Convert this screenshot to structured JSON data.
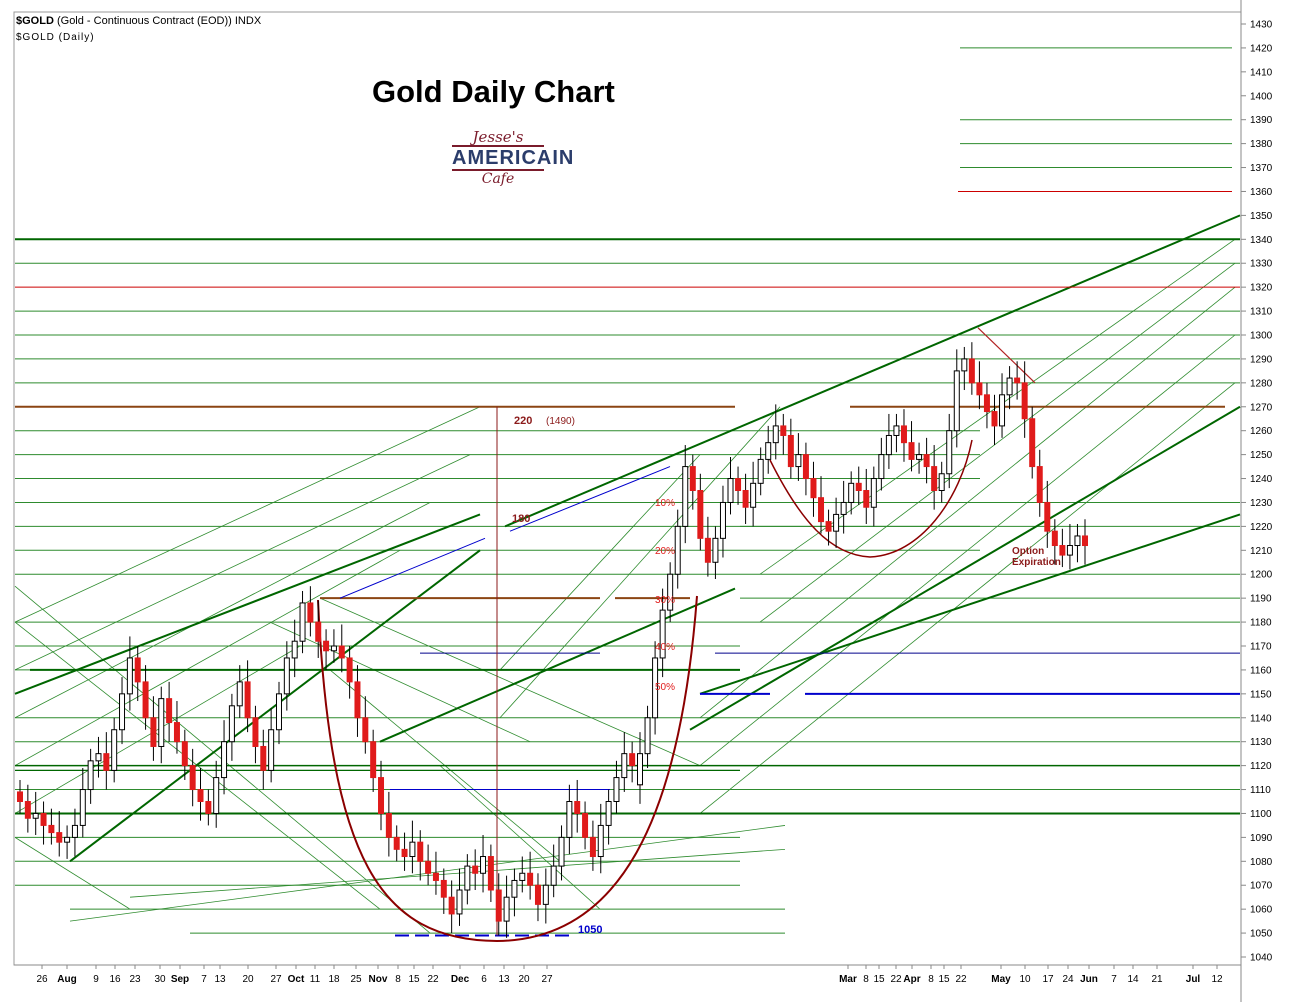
{
  "header": {
    "symbol": "$GOLD",
    "contract": "(Gold - Continuous Contract (EOD))",
    "exchange": "INDX",
    "period": "$GOLD (Daily)"
  },
  "logo": {
    "line1": "Jesse's",
    "line2": "AMERICAIN",
    "line3": "Cafe"
  },
  "chart_data": {
    "type": "candlestick",
    "title": "Gold Daily Chart",
    "ylim": [
      1040,
      1430
    ],
    "y_ticks": [
      1040,
      1050,
      1060,
      1070,
      1080,
      1090,
      1100,
      1110,
      1120,
      1130,
      1140,
      1150,
      1160,
      1170,
      1180,
      1190,
      1200,
      1210,
      1220,
      1230,
      1240,
      1250,
      1260,
      1270,
      1280,
      1290,
      1300,
      1310,
      1320,
      1330,
      1340,
      1350,
      1360,
      1370,
      1380,
      1390,
      1400,
      1410,
      1420,
      1430
    ],
    "x_tick_labels": [
      {
        "label": "26",
        "bold": false
      },
      {
        "label": "Aug",
        "bold": true
      },
      {
        "label": "9",
        "bold": false
      },
      {
        "label": "16",
        "bold": false
      },
      {
        "label": "23",
        "bold": false
      },
      {
        "label": "30",
        "bold": false
      },
      {
        "label": "Sep",
        "bold": true
      },
      {
        "label": "7",
        "bold": false
      },
      {
        "label": "13",
        "bold": false
      },
      {
        "label": "20",
        "bold": false
      },
      {
        "label": "27",
        "bold": false
      },
      {
        "label": "Oct",
        "bold": true
      },
      {
        "label": "11",
        "bold": false
      },
      {
        "label": "18",
        "bold": false
      },
      {
        "label": "25",
        "bold": false
      },
      {
        "label": "Nov",
        "bold": true
      },
      {
        "label": "8",
        "bold": false
      },
      {
        "label": "15",
        "bold": false
      },
      {
        "label": "22",
        "bold": false
      },
      {
        "label": "Dec",
        "bold": true
      },
      {
        "label": "6",
        "bold": false
      },
      {
        "label": "13",
        "bold": false
      },
      {
        "label": "20",
        "bold": false
      },
      {
        "label": "27",
        "bold": false
      },
      {
        "label": "Mar",
        "bold": true
      },
      {
        "label": "8",
        "bold": false
      },
      {
        "label": "15",
        "bold": false
      },
      {
        "label": "22",
        "bold": false
      },
      {
        "label": "Apr",
        "bold": true
      },
      {
        "label": "8",
        "bold": false
      },
      {
        "label": "15",
        "bold": false
      },
      {
        "label": "22",
        "bold": false
      },
      {
        "label": "May",
        "bold": true
      },
      {
        "label": "10",
        "bold": false
      },
      {
        "label": "17",
        "bold": false
      },
      {
        "label": "24",
        "bold": false
      },
      {
        "label": "Jun",
        "bold": true
      },
      {
        "label": "7",
        "bold": false
      },
      {
        "label": "14",
        "bold": false
      },
      {
        "label": "21",
        "bold": false
      },
      {
        "label": "Jul",
        "bold": true
      },
      {
        "label": "12",
        "bold": false
      }
    ],
    "key_levels": [
      {
        "value": 1360,
        "color": "#cc0000"
      },
      {
        "value": 1320,
        "color": "#cc0000"
      },
      {
        "value": 1340,
        "color": "#006600"
      },
      {
        "value": 1270,
        "color": "#8b4513"
      },
      {
        "value": 1190,
        "color": "#8b4513"
      },
      {
        "value": 1167,
        "color": "#00008b"
      },
      {
        "value": 1150,
        "color": "#0000cc"
      },
      {
        "value": 1100,
        "color": "#006600"
      }
    ],
    "closes_first_leg": [
      1105,
      1098,
      1100,
      1095,
      1092,
      1088,
      1090,
      1095,
      1110,
      1122,
      1125,
      1118,
      1135,
      1150,
      1165,
      1155,
      1140,
      1128,
      1148,
      1138,
      1130,
      1120,
      1110,
      1105,
      1100,
      1115,
      1130,
      1145,
      1155,
      1140,
      1128,
      1118,
      1135,
      1150,
      1165,
      1172,
      1188,
      1180,
      1172,
      1168,
      1170,
      1165,
      1155,
      1140,
      1130,
      1115,
      1100,
      1090,
      1085,
      1082,
      1088,
      1080,
      1075,
      1072,
      1065,
      1058,
      1068,
      1078,
      1075,
      1082,
      1068,
      1055,
      1065,
      1072,
      1075,
      1070,
      1062,
      1070,
      1078,
      1090,
      1105,
      1100,
      1090,
      1082,
      1095,
      1105,
      1115,
      1125,
      1120,
      1112,
      1125,
      1140,
      1165,
      1185,
      1200,
      1220,
      1245,
      1235,
      1215,
      1205,
      1215,
      1230,
      1240,
      1235,
      1228,
      1238,
      1248,
      1255,
      1262,
      1258,
      1245,
      1250,
      1240,
      1232,
      1222,
      1218,
      1225,
      1230,
      1238,
      1235,
      1228,
      1240,
      1250,
      1258,
      1262,
      1255,
      1248,
      1250,
      1245,
      1235,
      1242,
      1260,
      1285,
      1290,
      1280,
      1275,
      1268,
      1262,
      1275,
      1282,
      1280,
      1265,
      1245,
      1230,
      1218,
      1212,
      1208,
      1212,
      1216,
      1212
    ],
    "annotations": {
      "retracement_pct": [
        "10%",
        "20%",
        "30%",
        "40%",
        "50%"
      ],
      "measure_top": "220",
      "measure_target": "(1490)",
      "measure_mid": "180",
      "cup_bottom": "1050",
      "event": "Option Expiration"
    }
  }
}
